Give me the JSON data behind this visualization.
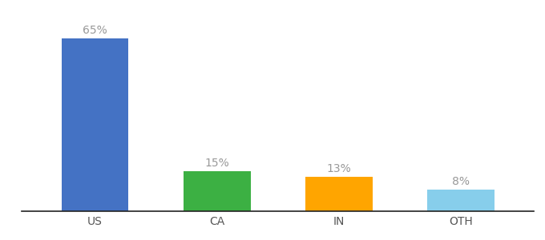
{
  "categories": [
    "US",
    "CA",
    "IN",
    "OTH"
  ],
  "values": [
    65,
    15,
    13,
    8
  ],
  "labels": [
    "65%",
    "15%",
    "13%",
    "8%"
  ],
  "bar_colors": [
    "#4472C4",
    "#3CB043",
    "#FFA500",
    "#87CEEB"
  ],
  "background_color": "#ffffff",
  "ylim": [
    0,
    75
  ],
  "label_fontsize": 10,
  "tick_fontsize": 10,
  "label_color": "#999999",
  "tick_color": "#555555",
  "bar_width": 0.55
}
